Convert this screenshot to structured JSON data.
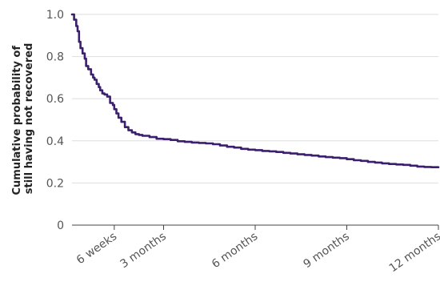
{
  "chart_data": {
    "type": "line",
    "ylabel_lines": [
      "Cumulative probability of",
      "still having not recovered"
    ],
    "ylim": [
      0,
      1.0
    ],
    "yticks": [
      {
        "value": 0,
        "label": "0"
      },
      {
        "value": 0.2,
        "label": "0.2"
      },
      {
        "value": 0.4,
        "label": "0.4"
      },
      {
        "value": 0.6,
        "label": "0.6"
      },
      {
        "value": 0.8,
        "label": "0.8"
      },
      {
        "value": 1.0,
        "label": "1.0"
      }
    ],
    "xlim_weeks": [
      0,
      52
    ],
    "xticks": [
      {
        "value_weeks": 6,
        "label": "6 weeks"
      },
      {
        "value_weeks": 13,
        "label": "3 months"
      },
      {
        "value_weeks": 26,
        "label": "6 months"
      },
      {
        "value_weeks": 39,
        "label": "9 months"
      },
      {
        "value_weeks": 52,
        "label": "12 months"
      }
    ],
    "grid": true,
    "line_color": "#3b1f6e",
    "series": [
      {
        "x_weeks": [
          0,
          0.3,
          0.6,
          0.8,
          1.0,
          1.2,
          1.5,
          1.8,
          2.0,
          2.3,
          2.7,
          3.0,
          3.2,
          3.5,
          3.8,
          4.0,
          4.3,
          4.6,
          5.0,
          5.4,
          5.8,
          6.0,
          6.3,
          6.6,
          7.0,
          7.5,
          8.0,
          8.5,
          9.0,
          9.5,
          10.0,
          11.0,
          12.0,
          13.0,
          14.0,
          15.0,
          16.0,
          17.0,
          18.0,
          19.0,
          20.0,
          21.0,
          22.0,
          23.0,
          24.0,
          25.0,
          26.0,
          27.0,
          28.0,
          29.0,
          30.0,
          31.0,
          32.0,
          33.0,
          34.0,
          35.0,
          36.0,
          37.0,
          38.0,
          39.0,
          40.0,
          41.0,
          42.0,
          43.0,
          44.0,
          45.0,
          46.0,
          47.0,
          48.0,
          49.0,
          50.0,
          51.0,
          52.0
        ],
        "y": [
          1.0,
          0.975,
          0.945,
          0.92,
          0.87,
          0.84,
          0.815,
          0.79,
          0.755,
          0.74,
          0.715,
          0.7,
          0.69,
          0.67,
          0.655,
          0.64,
          0.625,
          0.62,
          0.61,
          0.58,
          0.57,
          0.55,
          0.53,
          0.51,
          0.49,
          0.465,
          0.45,
          0.44,
          0.432,
          0.428,
          0.424,
          0.418,
          0.41,
          0.408,
          0.404,
          0.398,
          0.395,
          0.392,
          0.39,
          0.388,
          0.384,
          0.378,
          0.372,
          0.368,
          0.362,
          0.358,
          0.356,
          0.352,
          0.35,
          0.347,
          0.343,
          0.34,
          0.336,
          0.333,
          0.33,
          0.326,
          0.323,
          0.32,
          0.318,
          0.313,
          0.308,
          0.305,
          0.3,
          0.297,
          0.293,
          0.29,
          0.288,
          0.286,
          0.282,
          0.278,
          0.276,
          0.275,
          0.275
        ]
      }
    ]
  }
}
